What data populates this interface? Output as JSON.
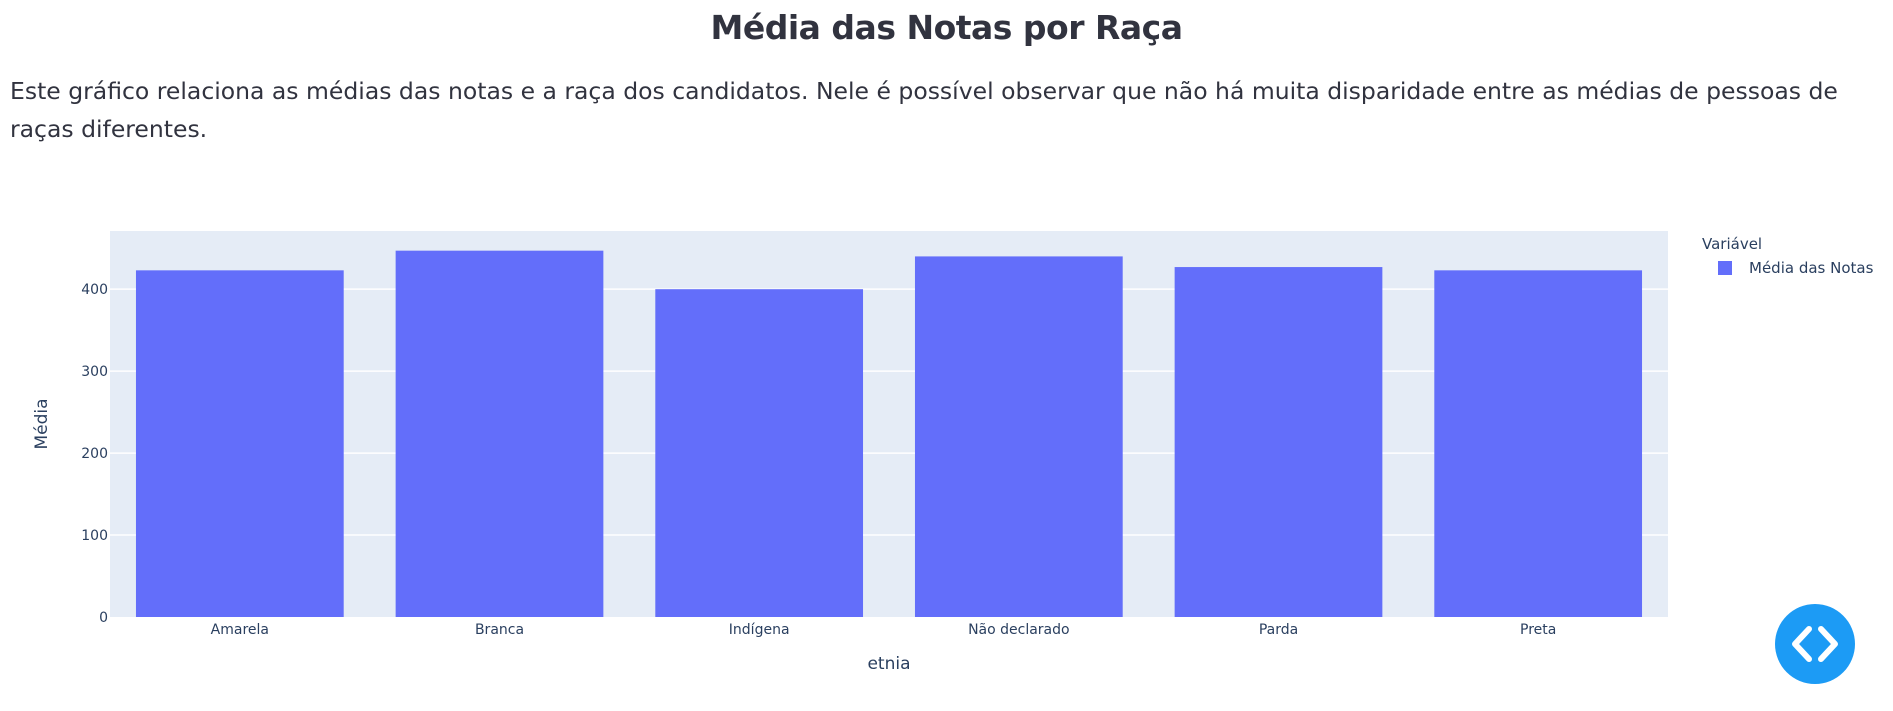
{
  "page": {
    "title": "Média das Notas por Raça",
    "description": "Este gráfico relaciona as médias das notas e a raça dos candidatos. Nele é possível observar que não há muita disparidade entre as médias de pessoas de raças diferentes."
  },
  "chart_data": {
    "type": "bar",
    "categories": [
      "Amarela",
      "Branca",
      "Indígena",
      "Não declarado",
      "Parda",
      "Preta"
    ],
    "series": [
      {
        "name": "Média das Notas",
        "values": [
          423,
          447,
          400,
          440,
          427,
          423
        ]
      }
    ],
    "xlabel": "etnia",
    "ylabel": "Média",
    "ylim": [
      0,
      471
    ],
    "yticks": [
      "0",
      "100",
      "200",
      "300",
      "400"
    ],
    "legend_title": "Variável",
    "legend_position": "top-right",
    "grid": true,
    "bar_color": "#636efa",
    "plot_background": "#e5ecf6"
  },
  "toggle": {
    "icon": "code-brackets-icon",
    "color": "#1c9bf5"
  }
}
